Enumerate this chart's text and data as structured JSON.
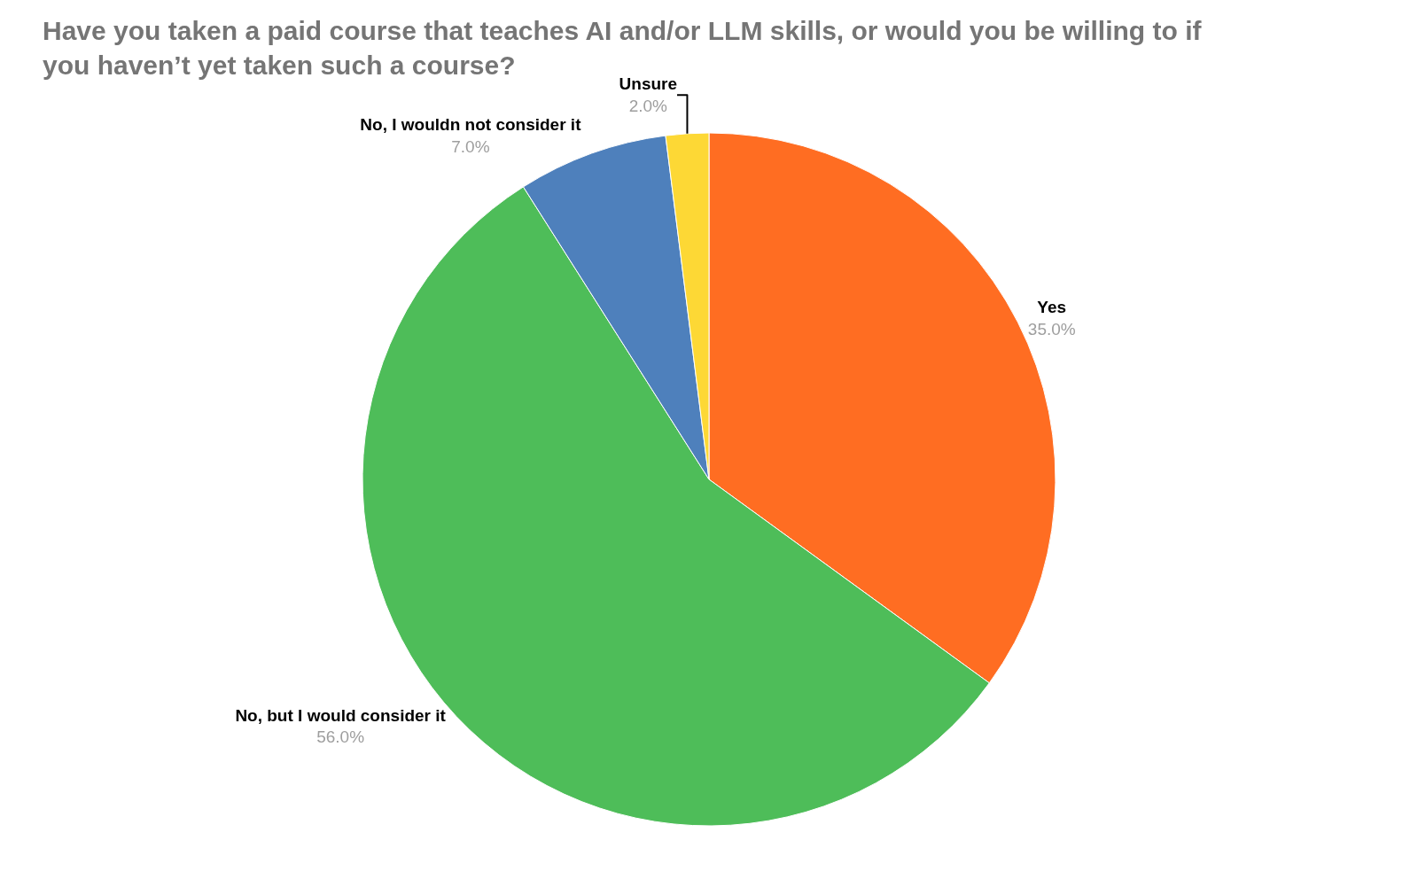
{
  "chart_data": {
    "type": "pie",
    "title": "Have you taken a paid course that teaches AI and/or LLM skills, or would you be willing to if you haven’t yet taken such a course?",
    "categories": [
      "Yes",
      "No, but I would consider it",
      "No, I wouldn not consider it",
      "Unsure"
    ],
    "values": [
      35,
      56,
      7,
      2
    ],
    "value_labels": [
      "35.0%",
      "56.0%",
      "7.0%",
      "2.0%"
    ],
    "colors": [
      "#ff6d22",
      "#4ebd59",
      "#4e80bc",
      "#fdd835"
    ],
    "legend": false
  }
}
